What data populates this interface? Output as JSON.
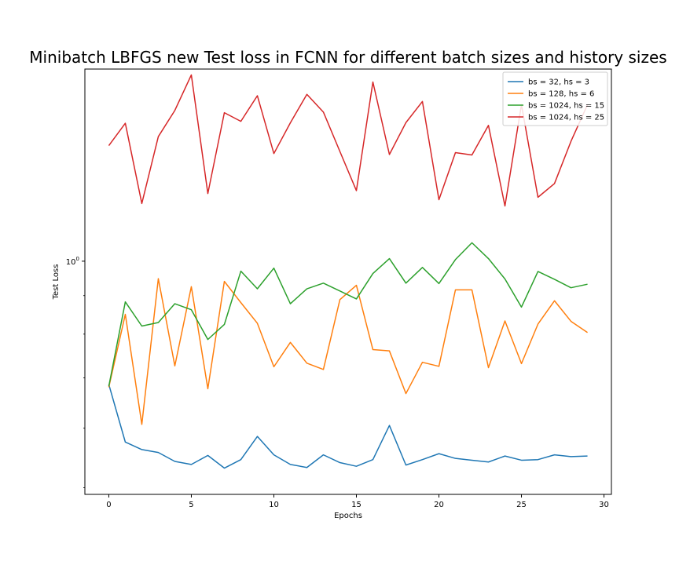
{
  "chart_data": {
    "type": "line",
    "title": "Minibatch LBFGS new Test loss in FCNN for different batch sizes and history sizes",
    "xlabel": "Epochs",
    "ylabel": "Test Loss",
    "yscale": "log",
    "x": [
      0,
      1,
      2,
      3,
      4,
      5,
      6,
      7,
      8,
      9,
      10,
      11,
      12,
      13,
      14,
      15,
      16,
      17,
      18,
      19,
      20,
      21,
      22,
      23,
      24,
      25,
      26,
      27,
      28,
      29
    ],
    "xlim": [
      -1.45,
      30.45
    ],
    "ylim": [
      0.49,
      1.8
    ],
    "xticks": [
      0,
      5,
      10,
      15,
      20,
      25,
      30
    ],
    "xtick_labels": [
      "0",
      "5",
      "10",
      "15",
      "20",
      "25",
      "30"
    ],
    "yticks": [
      1.0
    ],
    "ytick_label_base": "10",
    "ytick_label_exp": "0",
    "grid": false,
    "legend_position": "top-right",
    "series": [
      {
        "name": "bs = 32, hs = 3",
        "color": "#1f77b4",
        "values": [
          0.686,
          0.575,
          0.562,
          0.557,
          0.542,
          0.537,
          0.552,
          0.531,
          0.545,
          0.585,
          0.553,
          0.537,
          0.532,
          0.553,
          0.54,
          0.534,
          0.545,
          0.605,
          0.536,
          0.545,
          0.555,
          0.547,
          0.544,
          0.541,
          0.551,
          0.544,
          0.545,
          0.553,
          0.55,
          0.551
        ]
      },
      {
        "name": "bs = 128, hs = 6",
        "color": "#ff7f0e",
        "values": [
          0.68,
          0.85,
          0.607,
          0.948,
          0.726,
          0.925,
          0.677,
          0.94,
          0.881,
          0.827,
          0.724,
          0.78,
          0.732,
          0.718,
          0.889,
          0.929,
          0.763,
          0.76,
          0.667,
          0.734,
          0.725,
          0.916,
          0.916,
          0.722,
          0.833,
          0.731,
          0.825,
          0.886,
          0.832,
          0.804
        ]
      },
      {
        "name": "bs = 1024, hs = 15",
        "color": "#2ca02c",
        "values": [
          0.682,
          0.883,
          0.82,
          0.829,
          0.878,
          0.862,
          0.787,
          0.824,
          0.97,
          0.919,
          0.979,
          0.878,
          0.919,
          0.935,
          0.913,
          0.891,
          0.963,
          1.008,
          0.935,
          0.981,
          0.934,
          1.005,
          1.058,
          1.008,
          0.947,
          0.869,
          0.969,
          0.946,
          0.922,
          0.932
        ]
      },
      {
        "name": "bs = 1024, hs = 25",
        "color": "#d62728",
        "values": [
          1.424,
          1.525,
          1.193,
          1.464,
          1.586,
          1.768,
          1.23,
          1.575,
          1.534,
          1.659,
          1.39,
          1.527,
          1.666,
          1.578,
          1.399,
          1.241,
          1.73,
          1.386,
          1.528,
          1.63,
          1.207,
          1.394,
          1.384,
          1.515,
          1.184,
          1.614,
          1.216,
          1.268,
          1.443,
          1.614
        ]
      }
    ]
  }
}
